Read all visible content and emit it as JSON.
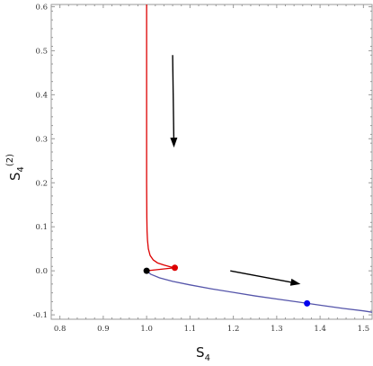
{
  "chart_data": {
    "type": "line",
    "title": "",
    "xlabel": "S",
    "xlabel_sub": "4",
    "ylabel": "S",
    "ylabel_sub": "4",
    "ylabel_sup": "(2)",
    "xlim": [
      0.78,
      1.52
    ],
    "ylim": [
      -0.11,
      0.605
    ],
    "x_ticks": [
      0.8,
      0.9,
      1.0,
      1.1,
      1.2,
      1.3,
      1.4,
      1.5
    ],
    "x_tick_labels": [
      "0.8",
      "0.9",
      "1.0",
      "1.1",
      "1.2",
      "1.3",
      "1.4",
      "1.5"
    ],
    "y_ticks": [
      -0.1,
      0.0,
      0.1,
      0.2,
      0.3,
      0.4,
      0.5,
      0.6
    ],
    "y_tick_labels": [
      "-0.1",
      "0.0",
      "0.1",
      "0.2",
      "0.3",
      "0.4",
      "0.5",
      "0.6"
    ],
    "grid": false,
    "colors": {
      "red_series": "#dd0000",
      "blue_series": "#5555aa",
      "arrow": "#000000",
      "frame": "#999999"
    },
    "series": [
      {
        "color": "red",
        "x": [
          1.0,
          1.0,
          1.0,
          1.0005,
          1.001,
          1.002,
          1.004,
          1.008,
          1.015,
          1.025,
          1.04,
          1.055,
          1.065
        ],
        "y": [
          0.605,
          0.4,
          0.2,
          0.12,
          0.09,
          0.07,
          0.05,
          0.035,
          0.025,
          0.018,
          0.013,
          0.009,
          0.007
        ]
      },
      {
        "color": "red",
        "x": [
          1.0,
          1.065
        ],
        "y": [
          0.0,
          0.007
        ]
      },
      {
        "color": "blue",
        "x": [
          1.0,
          1.01,
          1.03,
          1.06,
          1.1,
          1.15,
          1.2,
          1.25,
          1.3,
          1.35,
          1.4,
          1.45,
          1.5,
          1.52
        ],
        "y": [
          0.0,
          -0.008,
          -0.016,
          -0.024,
          -0.032,
          -0.041,
          -0.049,
          -0.057,
          -0.064,
          -0.071,
          -0.078,
          -0.085,
          -0.091,
          -0.094
        ]
      }
    ],
    "points": [
      {
        "x": 1.0,
        "y": 0.0,
        "color": "black"
      },
      {
        "x": 1.065,
        "y": 0.007,
        "color": "red"
      },
      {
        "x": 1.37,
        "y": -0.074,
        "color": "blue"
      }
    ],
    "arrows": [
      {
        "from": [
          1.06,
          0.49
        ],
        "to": [
          1.063,
          0.28
        ]
      },
      {
        "from": [
          1.193,
          0.0
        ],
        "to": [
          1.355,
          -0.03
        ]
      }
    ]
  }
}
